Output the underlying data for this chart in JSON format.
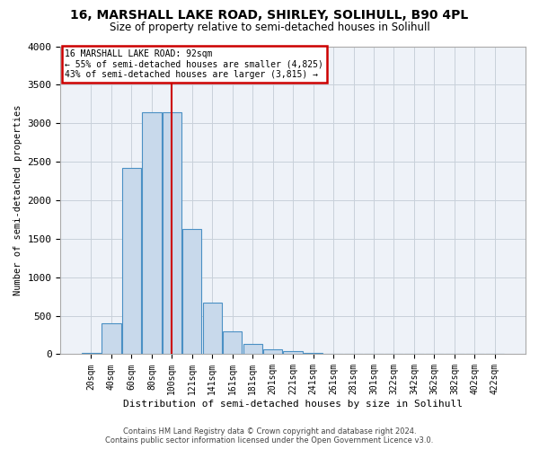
{
  "title_line1": "16, MARSHALL LAKE ROAD, SHIRLEY, SOLIHULL, B90 4PL",
  "title_line2": "Size of property relative to semi-detached houses in Solihull",
  "xlabel": "Distribution of semi-detached houses by size in Solihull",
  "ylabel": "Number of semi-detached properties",
  "bin_labels": [
    "20sqm",
    "40sqm",
    "60sqm",
    "80sqm",
    "100sqm",
    "121sqm",
    "141sqm",
    "161sqm",
    "181sqm",
    "201sqm",
    "221sqm",
    "241sqm",
    "261sqm",
    "281sqm",
    "301sqm",
    "322sqm",
    "342sqm",
    "362sqm",
    "382sqm",
    "402sqm",
    "422sqm"
  ],
  "bar_values": [
    20,
    400,
    2420,
    3140,
    3140,
    1630,
    670,
    300,
    135,
    65,
    45,
    20,
    5,
    5,
    5,
    0,
    0,
    0,
    0,
    0,
    0
  ],
  "bar_color": "#c8d9eb",
  "bar_edge_color": "#4a90c4",
  "highlight_bin_index": 4,
  "highlight_line_color": "#cc0000",
  "annotation_title": "16 MARSHALL LAKE ROAD: 92sqm",
  "annotation_line2": "← 55% of semi-detached houses are smaller (4,825)",
  "annotation_line3": "43% of semi-detached houses are larger (3,815) →",
  "annotation_box_facecolor": "#ffffff",
  "annotation_box_edgecolor": "#cc0000",
  "ylim": [
    0,
    4000
  ],
  "yticks": [
    0,
    500,
    1000,
    1500,
    2000,
    2500,
    3000,
    3500,
    4000
  ],
  "grid_color": "#c8d0da",
  "plot_bg_color": "#eef2f8",
  "footer_line1": "Contains HM Land Registry data © Crown copyright and database right 2024.",
  "footer_line2": "Contains public sector information licensed under the Open Government Licence v3.0."
}
